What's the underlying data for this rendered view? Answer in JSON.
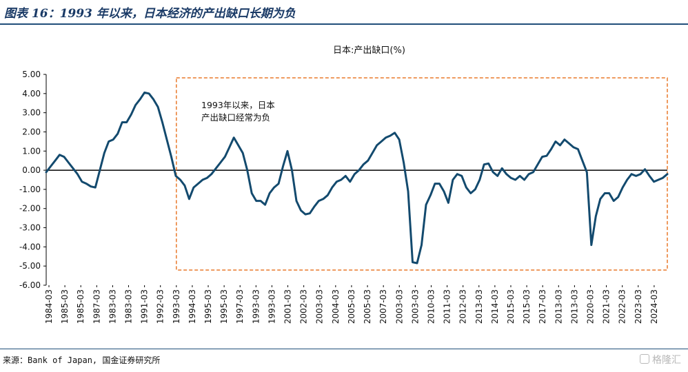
{
  "header": {
    "title": "图表 16：1993 年以来，日本经济的产出缺口长期为负"
  },
  "footer": {
    "source": "来源：Bank of Japan, 国金证券研究所",
    "watermark": "格隆汇"
  },
  "chart_data": {
    "type": "line",
    "title": "日本:产出缺口(%)",
    "ylim": [
      -6,
      5
    ],
    "ytick_labels": [
      "5.00",
      "4.00",
      "3.00",
      "2.00",
      "1.00",
      "0.00",
      "-1.00",
      "-2.00",
      "-3.00",
      "-4.00",
      "-5.00",
      "-6.00"
    ],
    "yticks": [
      5,
      4,
      3,
      2,
      1,
      0,
      -1,
      -2,
      -3,
      -4,
      -5,
      -6
    ],
    "x_tick_labels": [
      "1984-03",
      "1985-03",
      "1985-03",
      "1987-03",
      "1983-03",
      "1983-03",
      "1991-03",
      "1992-03",
      "1993-03",
      "1994-03",
      "1995-03",
      "1995-03",
      "1997-03",
      "1993-03",
      "1993-03",
      "2001-03",
      "2002-03",
      "2003-03",
      "2004-03",
      "2005-03",
      "2005-03",
      "2007-03",
      "2003-03",
      "2003-03",
      "2010-03",
      "2011-03",
      "2012-03",
      "2013-03",
      "2014-03",
      "2015-03",
      "2015-03",
      "2017-03",
      "2013-03",
      "2013-03",
      "2020-03",
      "2021-03",
      "2022-03",
      "2023-03",
      "2024-03"
    ],
    "annotation": {
      "text_line1": "1993年以来，日本",
      "text_line2": "产出缺口经常为负",
      "highlight_from": "1993-03",
      "highlight_to": "2025-03"
    },
    "series": [
      {
        "name": "",
        "color": "#134a6e",
        "values": [
          -0.1,
          0.2,
          0.5,
          0.8,
          0.7,
          0.4,
          0.1,
          -0.2,
          -0.6,
          -0.7,
          -0.85,
          -0.9,
          0.0,
          0.9,
          1.5,
          1.6,
          1.9,
          2.5,
          2.5,
          2.9,
          3.4,
          3.7,
          4.05,
          4.0,
          3.7,
          3.3,
          2.5,
          1.6,
          0.7,
          -0.3,
          -0.5,
          -0.8,
          -1.5,
          -0.9,
          -0.7,
          -0.5,
          -0.4,
          -0.2,
          0.1,
          0.4,
          0.7,
          1.2,
          1.7,
          1.3,
          0.9,
          0.0,
          -1.2,
          -1.6,
          -1.6,
          -1.8,
          -1.2,
          -0.9,
          -0.7,
          0.2,
          1.0,
          0.0,
          -1.6,
          -2.1,
          -2.3,
          -2.25,
          -1.9,
          -1.6,
          -1.5,
          -1.3,
          -0.9,
          -0.6,
          -0.5,
          -0.3,
          -0.6,
          -0.2,
          0.0,
          0.3,
          0.5,
          0.9,
          1.3,
          1.5,
          1.7,
          1.8,
          1.95,
          1.6,
          0.4,
          -1.1,
          -4.8,
          -4.85,
          -3.9,
          -1.8,
          -1.3,
          -0.7,
          -0.7,
          -1.1,
          -1.7,
          -0.5,
          -0.2,
          -0.3,
          -0.9,
          -1.2,
          -1.0,
          -0.5,
          0.3,
          0.35,
          -0.1,
          -0.3,
          0.1,
          -0.2,
          -0.4,
          -0.5,
          -0.3,
          -0.5,
          -0.2,
          -0.1,
          0.3,
          0.7,
          0.75,
          1.1,
          1.5,
          1.3,
          1.6,
          1.4,
          1.2,
          1.1,
          0.5,
          -0.1,
          -3.9,
          -2.4,
          -1.5,
          -1.2,
          -1.2,
          -1.6,
          -1.4,
          -0.9,
          -0.5,
          -0.2,
          -0.3,
          -0.2,
          0.05,
          -0.3,
          -0.6,
          -0.5,
          -0.4,
          -0.2
        ]
      }
    ]
  }
}
